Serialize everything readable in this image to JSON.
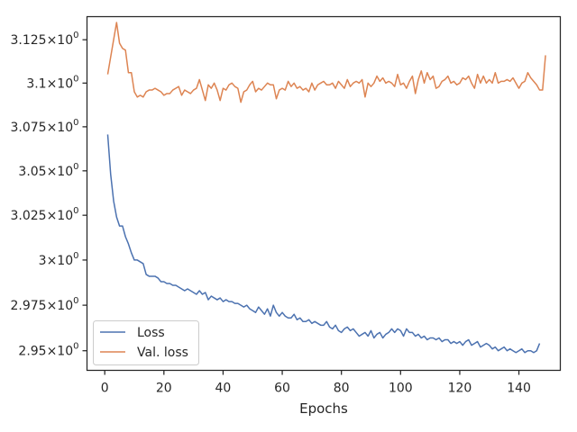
{
  "chart_data": {
    "type": "line",
    "title": "",
    "xlabel": "Epochs",
    "ylabel": "",
    "xlim": [
      -6,
      154
    ],
    "ylim": [
      2.9393,
      3.1384
    ],
    "yscale": "log",
    "grid": false,
    "legend_position": "lower-left",
    "x_ticks": [
      0,
      20,
      40,
      60,
      80,
      100,
      120,
      140
    ],
    "x_tick_labels": [
      "0",
      "20",
      "40",
      "60",
      "80",
      "100",
      "120",
      "140"
    ],
    "y_ticks": [
      2.95,
      2.975,
      3.0,
      3.025,
      3.05,
      3.075,
      3.1,
      3.125
    ],
    "y_tick_labels": [
      {
        "mant": "2.95",
        "exp": "0"
      },
      {
        "mant": "2.975",
        "exp": "0"
      },
      {
        "mant": "3",
        "exp": "0"
      },
      {
        "mant": "3.025",
        "exp": "0"
      },
      {
        "mant": "3.05",
        "exp": "0"
      },
      {
        "mant": "3.075",
        "exp": "0"
      },
      {
        "mant": "3.1",
        "exp": "0"
      },
      {
        "mant": "3.125",
        "exp": "0"
      }
    ],
    "x_start": 1,
    "series": [
      {
        "name": "Loss",
        "color": "#4c72b0",
        "values": [
          3.0706,
          3.048,
          3.033,
          3.024,
          3.019,
          3.019,
          3.013,
          3.009,
          3.004,
          3.0,
          3.0,
          2.999,
          2.998,
          2.992,
          2.991,
          2.991,
          2.991,
          2.99,
          2.988,
          2.988,
          2.987,
          2.987,
          2.986,
          2.986,
          2.985,
          2.984,
          2.983,
          2.984,
          2.983,
          2.982,
          2.981,
          2.983,
          2.981,
          2.982,
          2.978,
          2.98,
          2.979,
          2.978,
          2.979,
          2.977,
          2.978,
          2.977,
          2.977,
          2.976,
          2.976,
          2.975,
          2.974,
          2.975,
          2.973,
          2.972,
          2.971,
          2.974,
          2.972,
          2.97,
          2.973,
          2.969,
          2.975,
          2.971,
          2.969,
          2.971,
          2.969,
          2.968,
          2.968,
          2.97,
          2.967,
          2.968,
          2.966,
          2.966,
          2.967,
          2.965,
          2.966,
          2.965,
          2.964,
          2.964,
          2.966,
          2.963,
          2.962,
          2.964,
          2.961,
          2.96,
          2.962,
          2.963,
          2.961,
          2.962,
          2.96,
          2.958,
          2.959,
          2.96,
          2.958,
          2.961,
          2.957,
          2.959,
          2.96,
          2.957,
          2.959,
          2.96,
          2.962,
          2.96,
          2.962,
          2.961,
          2.958,
          2.962,
          2.96,
          2.96,
          2.958,
          2.959,
          2.957,
          2.958,
          2.956,
          2.957,
          2.957,
          2.956,
          2.957,
          2.955,
          2.956,
          2.956,
          2.954,
          2.955,
          2.954,
          2.955,
          2.953,
          2.955,
          2.956,
          2.953,
          2.954,
          2.955,
          2.952,
          2.953,
          2.954,
          2.953,
          2.951,
          2.952,
          2.95,
          2.951,
          2.952,
          2.95,
          2.951,
          2.95,
          2.949,
          2.95,
          2.951,
          2.949,
          2.95,
          2.95,
          2.949,
          2.95,
          2.954
        ]
      },
      {
        "name": "Val. loss",
        "color": "#dd8452",
        "values": [
          3.105,
          3.115,
          3.125,
          3.135,
          3.123,
          3.12,
          3.119,
          3.106,
          3.106,
          3.095,
          3.092,
          3.093,
          3.092,
          3.095,
          3.096,
          3.096,
          3.097,
          3.096,
          3.095,
          3.093,
          3.094,
          3.094,
          3.096,
          3.097,
          3.098,
          3.093,
          3.096,
          3.095,
          3.094,
          3.096,
          3.097,
          3.102,
          3.096,
          3.09,
          3.099,
          3.097,
          3.1,
          3.096,
          3.09,
          3.097,
          3.096,
          3.099,
          3.1,
          3.098,
          3.097,
          3.089,
          3.095,
          3.096,
          3.099,
          3.101,
          3.095,
          3.097,
          3.096,
          3.098,
          3.1,
          3.099,
          3.099,
          3.091,
          3.096,
          3.097,
          3.096,
          3.101,
          3.098,
          3.1,
          3.097,
          3.098,
          3.096,
          3.097,
          3.095,
          3.1,
          3.096,
          3.099,
          3.1,
          3.101,
          3.099,
          3.099,
          3.1,
          3.097,
          3.101,
          3.099,
          3.097,
          3.102,
          3.098,
          3.1,
          3.101,
          3.1,
          3.102,
          3.092,
          3.1,
          3.098,
          3.1,
          3.104,
          3.101,
          3.103,
          3.1,
          3.101,
          3.1,
          3.098,
          3.105,
          3.099,
          3.1,
          3.097,
          3.101,
          3.104,
          3.094,
          3.102,
          3.107,
          3.1,
          3.106,
          3.102,
          3.104,
          3.097,
          3.098,
          3.101,
          3.102,
          3.104,
          3.1,
          3.101,
          3.099,
          3.1,
          3.103,
          3.102,
          3.104,
          3.1,
          3.097,
          3.105,
          3.1,
          3.104,
          3.1,
          3.102,
          3.1,
          3.106,
          3.1,
          3.101,
          3.101,
          3.102,
          3.101,
          3.103,
          3.1,
          3.097,
          3.1,
          3.101,
          3.106,
          3.103,
          3.101,
          3.099,
          3.096,
          3.096,
          3.116
        ]
      }
    ]
  }
}
